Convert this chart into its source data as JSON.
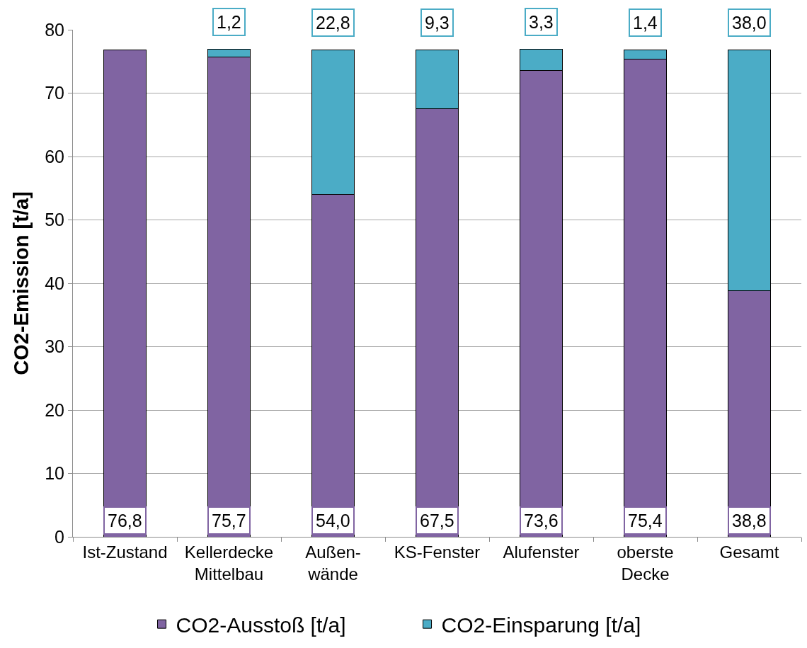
{
  "chart_data": {
    "type": "bar",
    "categories": [
      "Ist-Zustand",
      "Kellerdecke\nMittelbau",
      "Außen-\nwände",
      "KS-Fenster",
      "Alufenster",
      "oberste\nDecke",
      "Gesamt"
    ],
    "series": [
      {
        "name": "CO2-Ausstoß [t/a]",
        "color": "#8064a2",
        "values": [
          76.8,
          75.7,
          54.0,
          67.5,
          73.6,
          75.4,
          38.8
        ],
        "value_labels": [
          "76,8",
          "75,7",
          "54,0",
          "67,5",
          "73,6",
          "75,4",
          "38,8"
        ]
      },
      {
        "name": "CO2-Einsparung [t/a]",
        "color": "#4bacc6",
        "values": [
          null,
          1.2,
          22.8,
          9.3,
          3.3,
          1.4,
          38.0
        ],
        "value_labels": [
          null,
          "1,2",
          "22,8",
          "9,3",
          "3,3",
          "1,4",
          "38,0"
        ]
      }
    ],
    "stacked": true,
    "ylabel": "CO2-Emission [t/a]",
    "ylim": [
      0,
      80
    ],
    "yticks": [
      0,
      10,
      20,
      30,
      40,
      50,
      60,
      70,
      80
    ],
    "grid": "y",
    "legend": "bottom"
  }
}
